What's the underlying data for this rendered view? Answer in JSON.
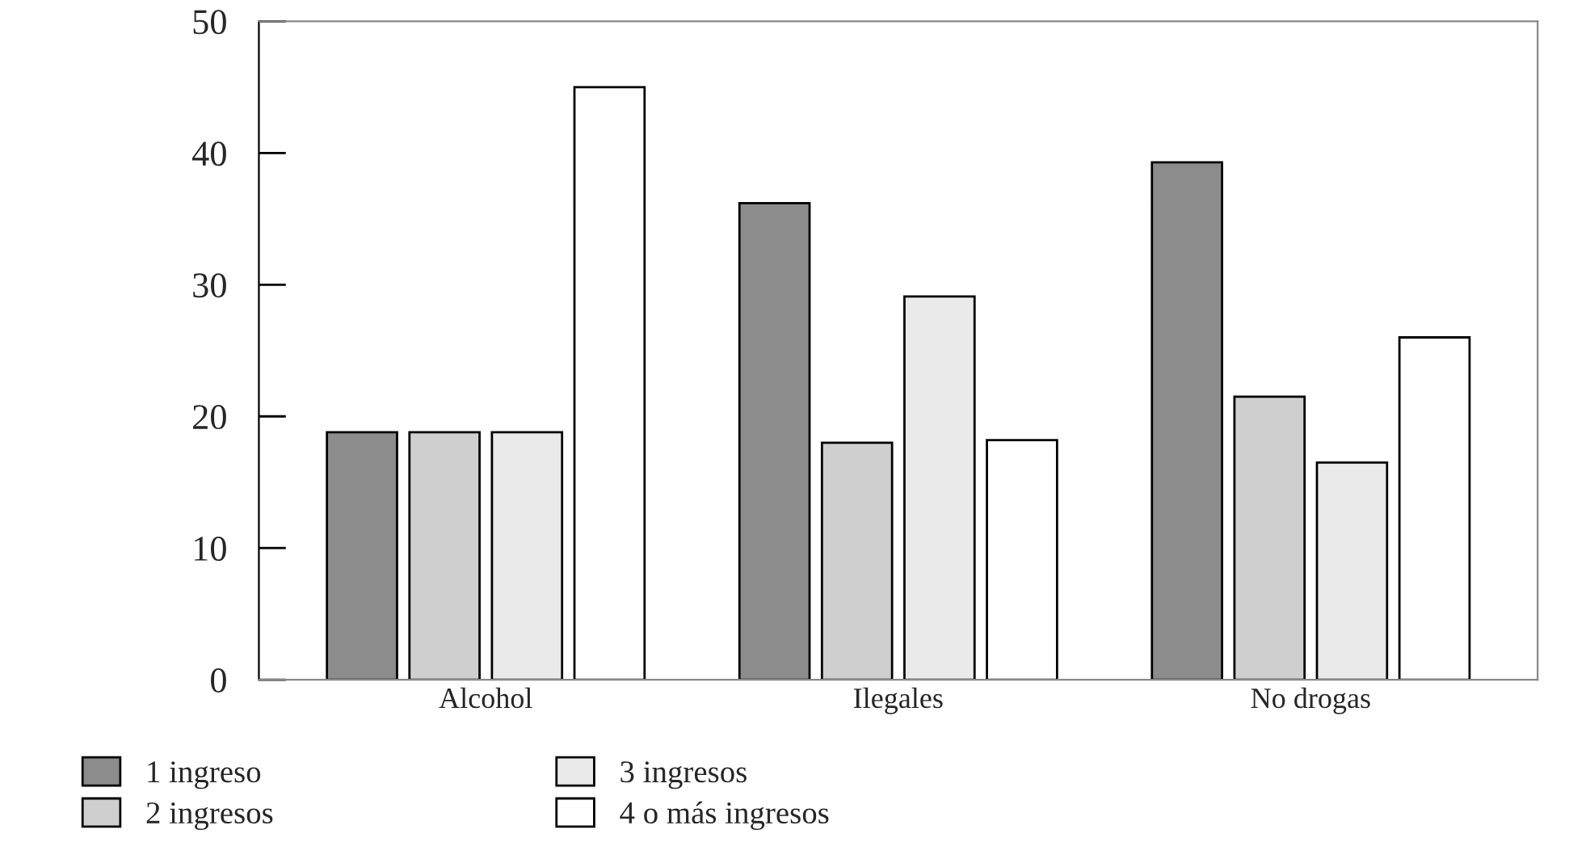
{
  "chart_data": {
    "type": "bar",
    "categories": [
      "Alcohol",
      "Ilegales",
      "No drogas"
    ],
    "series": [
      {
        "name": "1 ingreso",
        "color": "#8c8c8c",
        "values": [
          18.8,
          36.2,
          39.3
        ]
      },
      {
        "name": "2 ingresos",
        "color": "#cfcfcf",
        "values": [
          18.8,
          18.0,
          21.5
        ]
      },
      {
        "name": "3 ingresos",
        "color": "#eaeaea",
        "values": [
          18.8,
          29.1,
          16.5
        ]
      },
      {
        "name": "4 o más ingresos",
        "color": "#ffffff",
        "values": [
          45,
          18.2,
          26.0
        ]
      }
    ],
    "ylim": [
      0,
      50
    ],
    "yticks": [
      0,
      10,
      20,
      30,
      40,
      50
    ],
    "grid": false,
    "legend": "bottom left"
  }
}
